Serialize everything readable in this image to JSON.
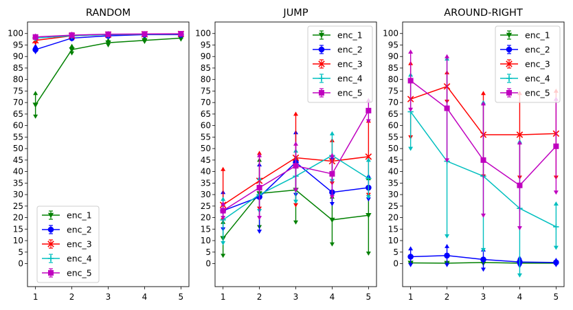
{
  "chart_data": [
    {
      "type": "line",
      "title": "RANDOM",
      "x": [
        1,
        2,
        3,
        4,
        5
      ],
      "ylim": [
        -10,
        105
      ],
      "yticks": [
        0,
        5,
        10,
        15,
        20,
        25,
        30,
        35,
        40,
        45,
        50,
        55,
        60,
        65,
        70,
        75,
        80,
        85,
        90,
        95,
        100
      ],
      "legend": "lower-left",
      "series": [
        {
          "name": "enc_1",
          "values": [
            69,
            93,
            96,
            97,
            98
          ],
          "lower": [
            64,
            91.5,
            95,
            96.5,
            97.5
          ],
          "upper": [
            74,
            94.5,
            97,
            98,
            98.5
          ]
        },
        {
          "name": "enc_2",
          "values": [
            93,
            98,
            99,
            99.5,
            99.5
          ],
          "lower": [
            92,
            97.5,
            98.5,
            99,
            99
          ],
          "upper": [
            94.5,
            98.5,
            99.5,
            100,
            100
          ]
        },
        {
          "name": "enc_3",
          "values": [
            97,
            99,
            99.5,
            99.7,
            99.8
          ],
          "lower": [
            96,
            98.5,
            99,
            99.4,
            99.5
          ],
          "upper": [
            98,
            99.5,
            100,
            100,
            100
          ]
        },
        {
          "name": "enc_4",
          "values": [
            98,
            99,
            99.5,
            99.7,
            99.8
          ],
          "lower": [
            97.5,
            98.5,
            99,
            99.4,
            99.5
          ],
          "upper": [
            98.5,
            99.5,
            100,
            100,
            100
          ]
        },
        {
          "name": "enc_5",
          "values": [
            98.5,
            99.3,
            99.7,
            99.8,
            99.9
          ],
          "lower": [
            98,
            98.8,
            99.3,
            99.5,
            99.6
          ],
          "upper": [
            99,
            99.8,
            100,
            100,
            100
          ]
        }
      ]
    },
    {
      "type": "line",
      "title": "JUMP",
      "x": [
        1,
        2,
        3,
        4,
        5
      ],
      "ylim": [
        -10,
        105
      ],
      "yticks": [
        0,
        5,
        10,
        15,
        20,
        25,
        30,
        35,
        40,
        45,
        50,
        55,
        60,
        65,
        70,
        75,
        80,
        85,
        90,
        95,
        100
      ],
      "legend": "upper-right",
      "series": [
        {
          "name": "enc_1",
          "values": [
            11,
            30.5,
            32,
            19,
            21
          ],
          "lower": [
            3.5,
            16,
            18,
            8.5,
            4.5
          ],
          "upper": [
            18,
            45,
            46,
            29,
            37
          ]
        },
        {
          "name": "enc_2",
          "values": [
            23,
            29,
            44,
            31,
            33
          ],
          "lower": [
            15,
            14,
            30,
            26,
            28
          ],
          "upper": [
            31,
            43,
            57,
            46,
            38
          ]
        },
        {
          "name": "enc_3",
          "values": [
            25.5,
            36,
            46,
            44.5,
            46.5
          ],
          "lower": [
            19,
            24,
            25.5,
            35,
            30
          ],
          "upper": [
            41,
            48,
            65,
            53.5,
            62
          ]
        },
        {
          "name": "enc_4",
          "values": [
            19,
            30,
            38,
            47,
            37
          ],
          "lower": [
            9,
            23,
            27,
            36,
            29
          ],
          "upper": [
            28,
            37,
            49,
            56.5,
            45
          ]
        },
        {
          "name": "enc_5",
          "values": [
            23,
            33,
            42.5,
            39,
            66.5
          ],
          "lower": [
            20,
            20,
            32,
            29,
            62
          ],
          "upper": [
            26,
            47,
            52,
            47,
            71
          ]
        }
      ]
    },
    {
      "type": "line",
      "title": "AROUND-RIGHT",
      "x": [
        1,
        2,
        3,
        4,
        5
      ],
      "ylim": [
        -10,
        105
      ],
      "yticks": [
        0,
        5,
        10,
        15,
        20,
        25,
        30,
        35,
        40,
        45,
        50,
        55,
        60,
        65,
        70,
        75,
        80,
        85,
        90,
        95,
        100
      ],
      "legend": "upper-right",
      "series": [
        {
          "name": "enc_1",
          "values": [
            0.3,
            0.2,
            0.5,
            0.2,
            0.2
          ],
          "lower": [
            0,
            0,
            0,
            0,
            0
          ],
          "upper": [
            0.6,
            0.5,
            0.9,
            0.6,
            0.6
          ]
        },
        {
          "name": "enc_2",
          "values": [
            3,
            3.5,
            1.8,
            0.7,
            0.5
          ],
          "lower": [
            -0.5,
            -0.5,
            -2.5,
            -1,
            -0.5
          ],
          "upper": [
            6.5,
            7.5,
            6,
            2.5,
            1.5
          ]
        },
        {
          "name": "enc_3",
          "values": [
            71.5,
            77,
            56,
            56,
            56.5
          ],
          "lower": [
            55,
            70.5,
            38,
            37.5,
            37.5
          ],
          "upper": [
            87,
            83,
            74,
            74,
            75
          ]
        },
        {
          "name": "enc_4",
          "values": [
            66,
            44.5,
            38,
            24,
            16
          ],
          "lower": [
            50,
            12,
            6,
            -5,
            7
          ],
          "upper": [
            82,
            89,
            70,
            53,
            26
          ]
        },
        {
          "name": "enc_5",
          "values": [
            79.5,
            67.5,
            45,
            34,
            51
          ],
          "lower": [
            67,
            45,
            21,
            15.5,
            31
          ],
          "upper": [
            92,
            90,
            69.5,
            52.5,
            71.5
          ]
        }
      ]
    }
  ],
  "series_styles": [
    {
      "color": "#008000",
      "marker": "triangle-down"
    },
    {
      "color": "#0000ff",
      "marker": "circle"
    },
    {
      "color": "#ff0000",
      "marker": "x"
    },
    {
      "color": "#00bfbf",
      "marker": "plus"
    },
    {
      "color": "#bf00bf",
      "marker": "square"
    }
  ]
}
